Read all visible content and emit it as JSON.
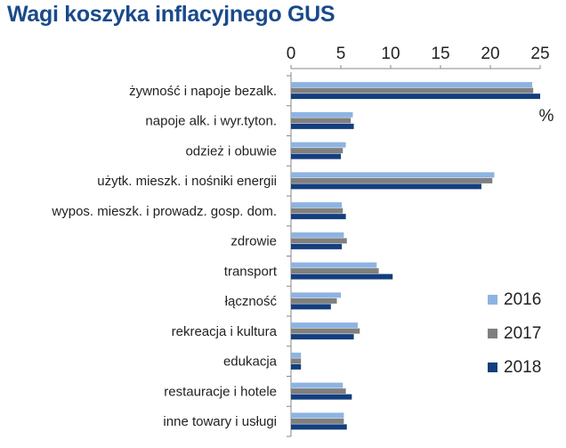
{
  "chart_data": {
    "type": "bar",
    "orientation": "horizontal",
    "title": "Wagi koszyka inflacyjnego GUS",
    "xlabel": "",
    "ylabel": "",
    "unit": "%",
    "xlim": [
      0,
      25
    ],
    "xticks": [
      "0",
      "5",
      "10",
      "15",
      "20",
      "25"
    ],
    "xaxis_position": "top",
    "grid": false,
    "legend_position": "right",
    "categories": [
      "żywność i napoje bezalk.",
      "napoje alk. i wyr.tyton.",
      "odzież i obuwie",
      "użytk. mieszk. i nośniki energii",
      "wypos. mieszk. i prowadz. gosp. dom.",
      "zdrowie",
      "transport",
      "łączność",
      "rekreacja i kultura",
      "edukacja",
      "restauracje i hotele",
      "inne towary i usługi"
    ],
    "series": [
      {
        "name": "2016",
        "color": "#8db3e2",
        "values": [
          24.2,
          6.2,
          5.5,
          20.4,
          5.1,
          5.3,
          8.6,
          5.0,
          6.7,
          1.0,
          5.2,
          5.3
        ]
      },
      {
        "name": "2017",
        "color": "#7f7f7f",
        "values": [
          24.3,
          6.0,
          5.2,
          20.2,
          5.2,
          5.6,
          8.8,
          4.6,
          6.9,
          1.0,
          5.5,
          5.3
        ]
      },
      {
        "name": "2018",
        "color": "#133e7e",
        "values": [
          25.0,
          6.3,
          5.0,
          19.1,
          5.5,
          5.1,
          10.2,
          4.0,
          6.3,
          1.0,
          6.1,
          5.6
        ]
      }
    ]
  }
}
